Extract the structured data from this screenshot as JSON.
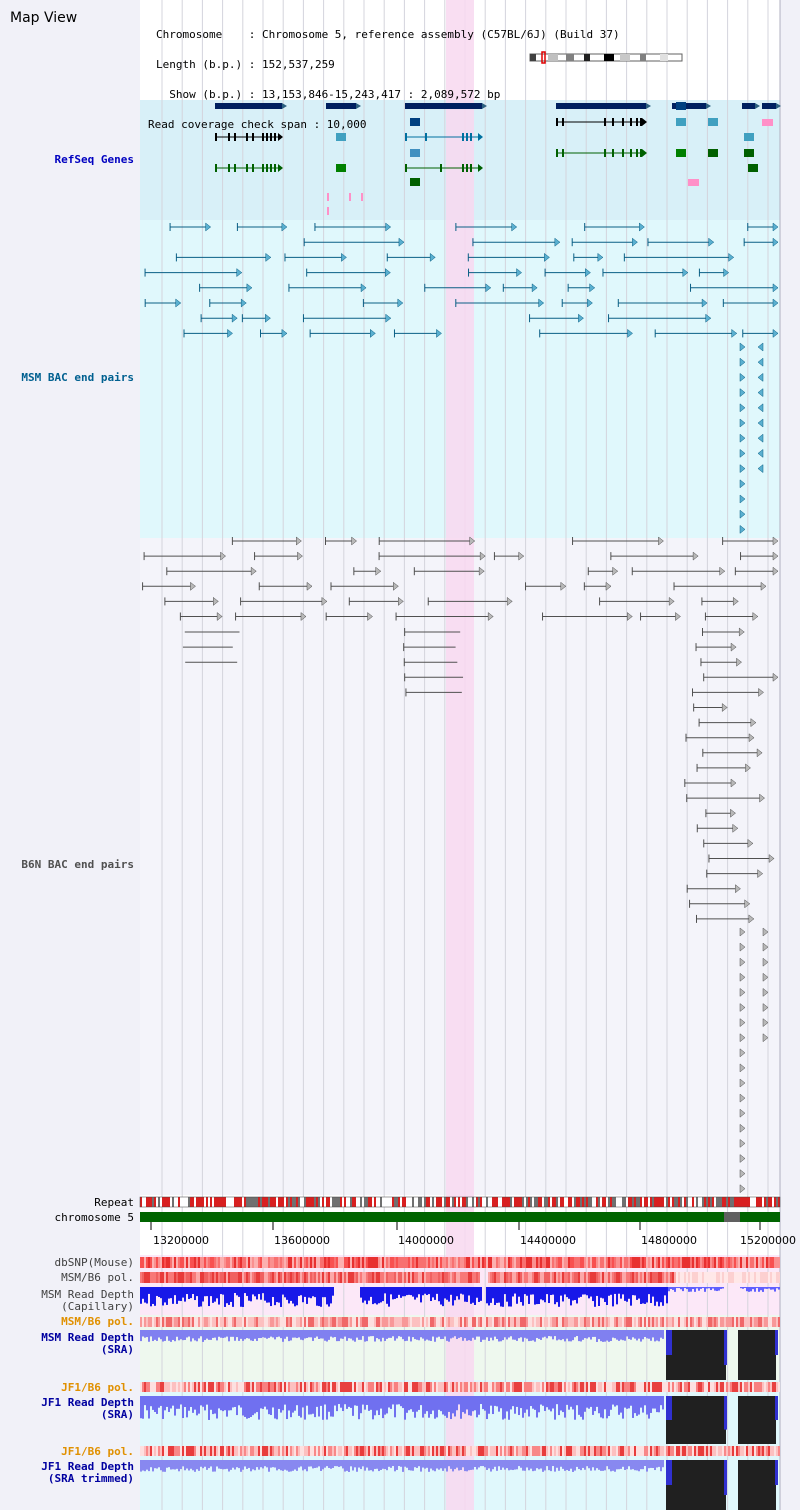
{
  "title": "Map View",
  "info_lines": [
    "Chromosome    : Chromosome 5, reference assembly (C57BL/6J) (Build 37)",
    "Length (b.p.) : 152,537,259",
    "  Show (b.p.) : 13,153,846-15,243,417 : 2,089,572 bp",
    "Read coverage check span : 10,000"
  ],
  "tracks": {
    "refseq": "RefSeq Genes",
    "msm_bac": "MSM BAC end pairs",
    "b6n_bac": "B6N BAC end pairs",
    "repeat": "Repeat",
    "chromosome": "chromosome 5",
    "dbsnp": "dbSNP(Mouse)",
    "msm_b6_pol": "MSM/B6 pol.",
    "msm_depth_cap_1": "MSM Read Depth",
    "msm_depth_cap_2": "(Capillary)",
    "msm_b6_pol_2": "MSM/B6 pol.",
    "msm_depth_sra_1": "MSM Read Depth",
    "msm_depth_sra_2": "(SRA)",
    "jf1_b6_pol": "JF1/B6 pol.",
    "jf1_depth_sra_1": "JF1 Read Depth",
    "jf1_depth_sra_2": "(SRA)",
    "jf1_b6_pol_2": "JF1/B6 pol.",
    "jf1_depth_trim_1": "JF1 Read Depth",
    "jf1_depth_trim_2": "(SRA trimmed)"
  },
  "axis_ticks": [
    "13200000",
    "13600000",
    "14000000",
    "14400000",
    "14800000",
    "15200000"
  ],
  "colors": {
    "refseq_label": "#0000c0",
    "msm_bac_label": "#006090",
    "b6n_bac_label": "#505050",
    "orange_label": "#e09000",
    "dark_blue_label": "#0000a0",
    "highlight": "#f8d8f0",
    "gene_dark": "#002060",
    "chromosome_green": "#006400"
  }
}
